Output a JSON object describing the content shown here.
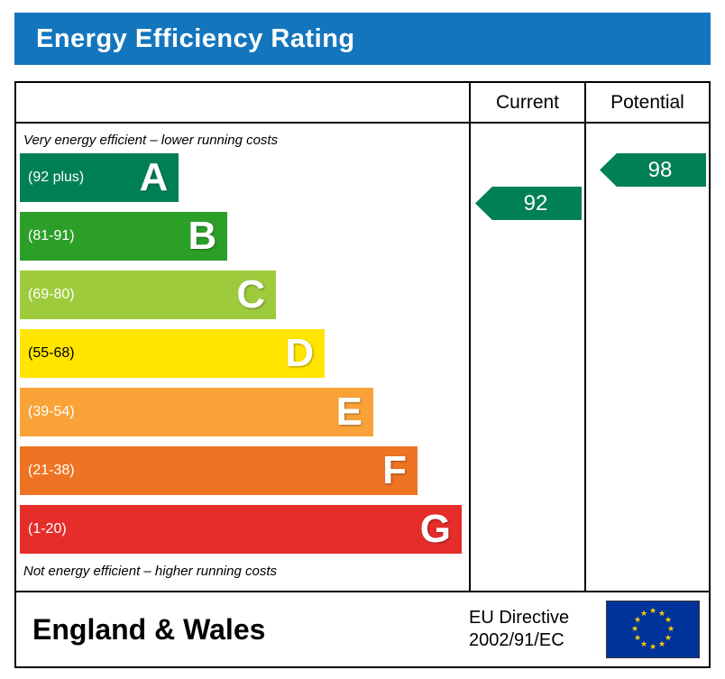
{
  "title": "Energy Efficiency Rating",
  "header": {
    "current_label": "Current",
    "potential_label": "Potential"
  },
  "notes": {
    "top": "Very energy efficient – lower running costs",
    "bottom": "Not energy efficient – higher running costs"
  },
  "bands": [
    {
      "range": "(92 plus)",
      "letter": "A",
      "color": "#008054",
      "label_color": "#ffffff",
      "width_pct": 36
    },
    {
      "range": "(81-91)",
      "letter": "B",
      "color": "#2c9f29",
      "label_color": "#ffffff",
      "width_pct": 47
    },
    {
      "range": "(69-80)",
      "letter": "C",
      "color": "#9dcb3c",
      "label_color": "#ffffff",
      "width_pct": 58
    },
    {
      "range": "(55-68)",
      "letter": "D",
      "color": "#ffe500",
      "label_color": "#000000",
      "width_pct": 69
    },
    {
      "range": "(39-54)",
      "letter": "E",
      "color": "#f9a237",
      "label_color": "#ffffff",
      "width_pct": 80
    },
    {
      "range": "(21-38)",
      "letter": "F",
      "color": "#ee7424",
      "label_color": "#ffffff",
      "width_pct": 90
    },
    {
      "range": "(1-20)",
      "letter": "G",
      "color": "#e52d2a",
      "label_color": "#ffffff",
      "width_pct": 100
    }
  ],
  "ratings": {
    "current": {
      "value": "92",
      "color": "#008054"
    },
    "potential": {
      "value": "98",
      "color": "#008054"
    }
  },
  "footer": {
    "region": "England & Wales",
    "directive_line1": "EU Directive",
    "directive_line2": "2002/91/EC"
  },
  "colors": {
    "title_bar": "#1376bd",
    "arrow": "#008054"
  },
  "chart_data": {
    "type": "bar",
    "title": "Energy Efficiency Rating",
    "categories": [
      "A",
      "B",
      "C",
      "D",
      "E",
      "F",
      "G"
    ],
    "band_ranges": [
      "92 plus",
      "81-91",
      "69-80",
      "55-68",
      "39-54",
      "21-38",
      "1-20"
    ],
    "values": [
      36,
      47,
      58,
      69,
      80,
      90,
      100
    ],
    "band_colors": [
      "#008054",
      "#2c9f29",
      "#9dcb3c",
      "#ffe500",
      "#f9a237",
      "#ee7424",
      "#e52d2a"
    ],
    "series": [
      {
        "name": "Current",
        "value": 92,
        "band": "A"
      },
      {
        "name": "Potential",
        "value": 98,
        "band": "A"
      }
    ],
    "annotations": [
      "Very energy efficient – lower running costs",
      "Not energy efficient – higher running costs"
    ],
    "legend_position": "none",
    "footer": "England & Wales — EU Directive 2002/91/EC"
  }
}
